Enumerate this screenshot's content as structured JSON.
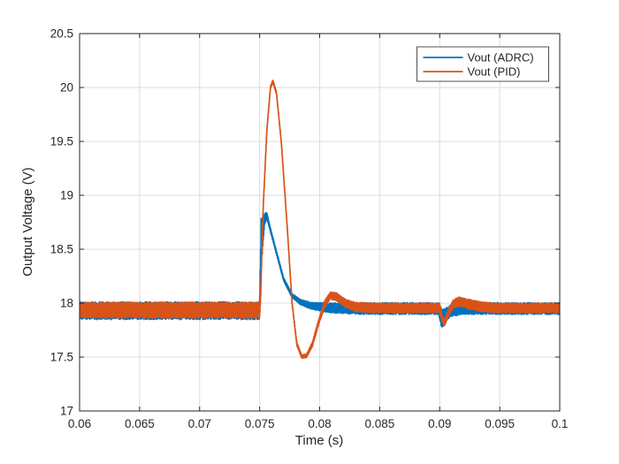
{
  "figure": {
    "background": "#ffffff",
    "axis_color": "#262626",
    "grid_color": "#dcdcdc"
  },
  "chart_data": {
    "type": "line",
    "title": "",
    "xlabel": "Time (s)",
    "ylabel": "Output Voltage (V)",
    "xlim": [
      0.06,
      0.1
    ],
    "ylim": [
      17,
      20.5
    ],
    "x_ticks": [
      0.06,
      0.065,
      0.07,
      0.075,
      0.08,
      0.085,
      0.09,
      0.095,
      0.1
    ],
    "x_tick_labels": [
      "0.06",
      "0.065",
      "0.07",
      "0.075",
      "0.08",
      "0.085",
      "0.09",
      "0.095",
      "0.1"
    ],
    "y_ticks": [
      17,
      17.5,
      18,
      18.5,
      19,
      19.5,
      20,
      20.5
    ],
    "y_tick_labels": [
      "17",
      "17.5",
      "18",
      "18.5",
      "19",
      "19.5",
      "20",
      "20.5"
    ],
    "grid": true,
    "legend": {
      "position": "top-right",
      "entries": [
        {
          "label": "Vout (ADRC)",
          "color": "#0072BD"
        },
        {
          "label": "Vout (PID)",
          "color": "#D95319"
        }
      ]
    },
    "annotations": {
      "steady_state_voltage": 18,
      "adrc_peak": {
        "t": 0.0755,
        "v": 18.84
      },
      "pid_peak": {
        "t": 0.076,
        "v": 20.07
      },
      "pid_undershoot": {
        "t": 0.0786,
        "v": 17.5
      },
      "load_step_times": [
        0.075,
        0.09
      ]
    },
    "series": [
      {
        "name": "Vout (ADRC)",
        "color": "#0072BD",
        "keypoints": [
          [
            0.06,
            17.93,
            0.075
          ],
          [
            0.075,
            17.93,
            0.075
          ],
          [
            0.07512,
            18.55,
            0.22
          ],
          [
            0.0754,
            18.78,
            0.055
          ],
          [
            0.0756,
            18.81,
            0.025
          ],
          [
            0.0759,
            18.68,
            0.018
          ],
          [
            0.0764,
            18.47,
            0.015
          ],
          [
            0.077,
            18.22,
            0.015
          ],
          [
            0.0777,
            18.07,
            0.018
          ],
          [
            0.0784,
            18.01,
            0.022
          ],
          [
            0.0793,
            17.975,
            0.03
          ],
          [
            0.081,
            17.955,
            0.042
          ],
          [
            0.0832,
            17.95,
            0.05
          ],
          [
            0.0899,
            17.95,
            0.05
          ],
          [
            0.0902,
            17.85,
            0.085
          ],
          [
            0.0905,
            17.89,
            0.06
          ],
          [
            0.0909,
            17.93,
            0.052
          ],
          [
            0.092,
            17.95,
            0.05
          ],
          [
            0.1,
            17.95,
            0.05
          ]
        ]
      },
      {
        "name": "Vout (PID)",
        "color": "#D95319",
        "keypoints": [
          [
            0.06,
            17.935,
            0.068
          ],
          [
            0.075,
            17.935,
            0.068
          ],
          [
            0.07508,
            18.05,
            0.02
          ],
          [
            0.0753,
            18.9,
            0.012
          ],
          [
            0.0756,
            19.6,
            0.012
          ],
          [
            0.0759,
            20.0,
            0.012
          ],
          [
            0.0761,
            20.058,
            0.012
          ],
          [
            0.0764,
            19.95,
            0.012
          ],
          [
            0.0768,
            19.5,
            0.012
          ],
          [
            0.0773,
            18.7,
            0.012
          ],
          [
            0.0777,
            18.0,
            0.012
          ],
          [
            0.0781,
            17.62,
            0.014
          ],
          [
            0.0785,
            17.505,
            0.015
          ],
          [
            0.0789,
            17.51,
            0.015
          ],
          [
            0.0794,
            17.62,
            0.02
          ],
          [
            0.0799,
            17.82,
            0.025
          ],
          [
            0.0804,
            17.99,
            0.03
          ],
          [
            0.0809,
            18.07,
            0.032
          ],
          [
            0.0814,
            18.06,
            0.034
          ],
          [
            0.0821,
            18.0,
            0.036
          ],
          [
            0.083,
            17.965,
            0.04
          ],
          [
            0.0845,
            17.955,
            0.042
          ],
          [
            0.09,
            17.955,
            0.042
          ],
          [
            0.0902,
            17.86,
            0.03
          ],
          [
            0.0904,
            17.82,
            0.03
          ],
          [
            0.0907,
            17.9,
            0.032
          ],
          [
            0.0911,
            17.99,
            0.036
          ],
          [
            0.0916,
            18.015,
            0.04
          ],
          [
            0.0923,
            17.995,
            0.042
          ],
          [
            0.0933,
            17.97,
            0.042
          ],
          [
            0.0947,
            17.955,
            0.042
          ],
          [
            0.1,
            17.955,
            0.042
          ]
        ]
      }
    ]
  }
}
